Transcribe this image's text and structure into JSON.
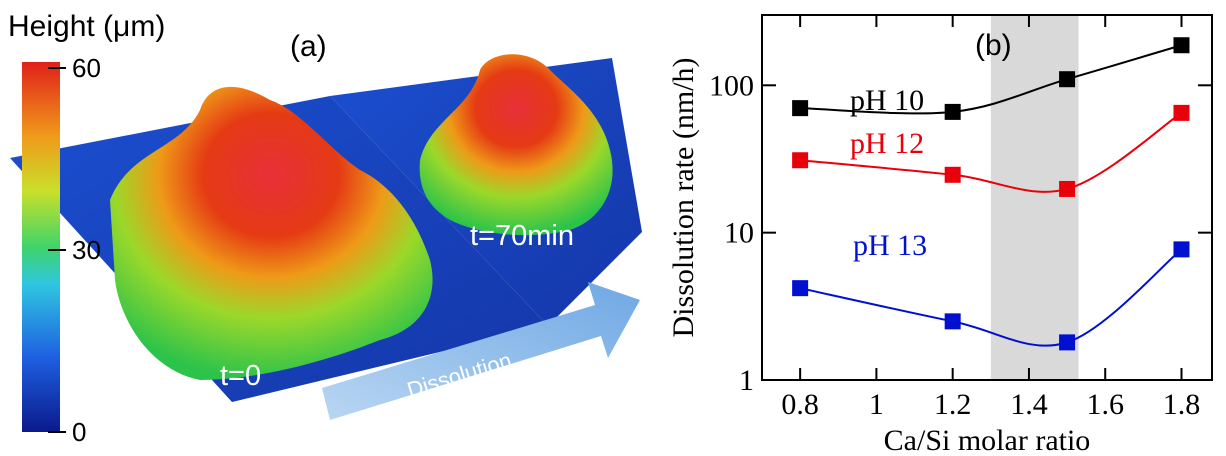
{
  "panel_a": {
    "label": "(a)",
    "colorbar": {
      "title": "Height (μm)",
      "lim": [
        0,
        60
      ],
      "ticks": [
        0,
        30,
        60
      ]
    },
    "time_after": "t=70min",
    "time_before": "t=0",
    "arrow_label": "Dissolution"
  },
  "chart_data": {
    "type": "line",
    "annotation": "(b)",
    "x_label": "Ca/Si molar ratio",
    "y_label": "Dissolution rate (nm/h)",
    "x": [
      0.8,
      1.2,
      1.5,
      1.8
    ],
    "series": [
      {
        "name": "pH 10",
        "color": "#000000",
        "values": [
          70,
          66,
          110,
          187
        ]
      },
      {
        "name": "pH 12",
        "color": "#e8000b",
        "values": [
          31,
          24.7,
          19.8,
          65
        ]
      },
      {
        "name": "pH 13",
        "color": "#0010d0",
        "values": [
          4.2,
          2.5,
          1.8,
          7.7
        ]
      }
    ],
    "xlim": [
      0.7,
      1.88
    ],
    "ylim": [
      1,
      300
    ],
    "log_y": true,
    "xticks": [
      0.8,
      1,
      1.2,
      1.4,
      1.6,
      1.8
    ],
    "yticks": [
      1,
      10,
      100
    ],
    "shaded_region": [
      1.3,
      1.53
    ],
    "shade_color": "#d9d9d9"
  }
}
